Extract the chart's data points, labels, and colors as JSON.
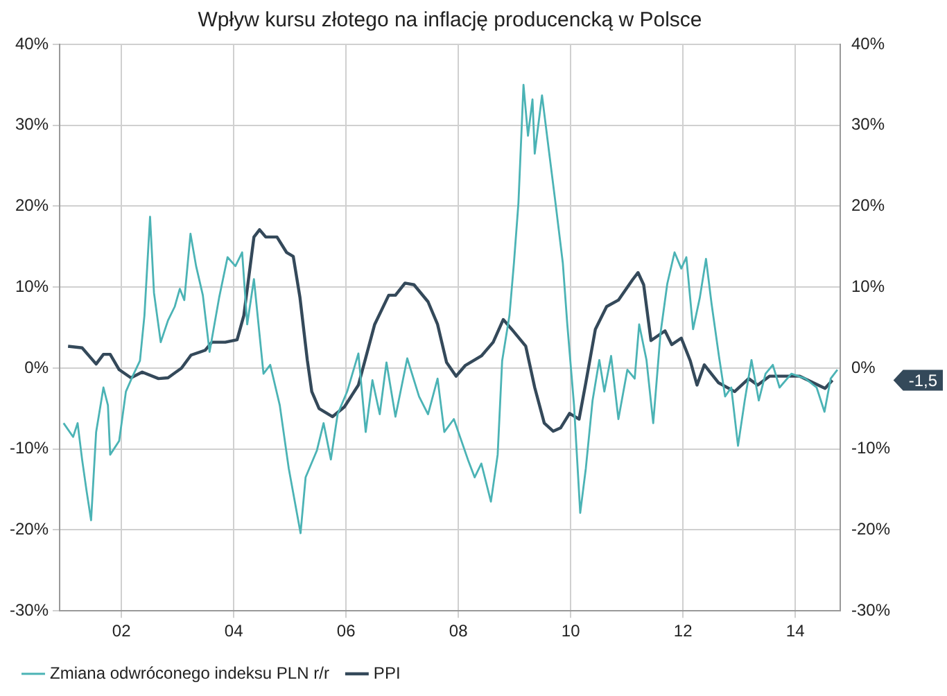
{
  "chart_data": {
    "type": "line",
    "title": "Wpływ kursu złotego na inflację producencką w Polsce",
    "xlim": [
      2000.9,
      2014.8
    ],
    "xticks": [
      {
        "value": 2002,
        "label": "02"
      },
      {
        "value": 2004,
        "label": "04"
      },
      {
        "value": 2006,
        "label": "06"
      },
      {
        "value": 2008,
        "label": "08"
      },
      {
        "value": 2010,
        "label": "10"
      },
      {
        "value": 2012,
        "label": "12"
      },
      {
        "value": 2014,
        "label": "14"
      }
    ],
    "ylim": [
      -30,
      40
    ],
    "yticks": [
      {
        "value": -30,
        "label": "-30%"
      },
      {
        "value": -20,
        "label": "-20%"
      },
      {
        "value": -10,
        "label": "-10%"
      },
      {
        "value": 0,
        "label": "0%"
      },
      {
        "value": 10,
        "label": "10%"
      },
      {
        "value": 20,
        "label": "20%"
      },
      {
        "value": 30,
        "label": "30%"
      },
      {
        "value": 40,
        "label": "40%"
      }
    ],
    "y2lim": [
      -30,
      40
    ],
    "y2ticks": [
      {
        "value": -30,
        "label": "-30%"
      },
      {
        "value": -20,
        "label": "-20%"
      },
      {
        "value": -10,
        "label": "-10%"
      },
      {
        "value": 0,
        "label": "0%"
      },
      {
        "value": 10,
        "label": "10%"
      },
      {
        "value": 20,
        "label": "20%"
      },
      {
        "value": 30,
        "label": "30%"
      },
      {
        "value": 40,
        "label": "40%"
      }
    ],
    "grid": true,
    "legend": "bottom",
    "marker": "none",
    "line_style": "solid",
    "annotations": [
      "-1,5"
    ],
    "series": [
      {
        "name": "Zmiana odwróconego indeksu PLN r/r",
        "color": "#4bb3b5",
        "x": [
          2000.97,
          2001.14,
          2001.22,
          2001.3,
          2001.38,
          2001.46,
          2001.55,
          2001.68,
          2001.76,
          2001.8,
          2001.96,
          2002.08,
          2002.2,
          2002.33,
          2002.41,
          2002.51,
          2002.58,
          2002.7,
          2002.83,
          2002.95,
          2003.04,
          2003.12,
          2003.23,
          2003.33,
          2003.45,
          2003.57,
          2003.74,
          2003.89,
          2004.03,
          2004.15,
          2004.24,
          2004.36,
          2004.53,
          2004.65,
          2004.82,
          2004.98,
          2005.19,
          2005.28,
          2005.48,
          2005.6,
          2005.73,
          2005.85,
          2006.02,
          2006.22,
          2006.35,
          2006.47,
          2006.6,
          2006.72,
          2006.88,
          2007.09,
          2007.3,
          2007.46,
          2007.63,
          2007.75,
          2007.92,
          2008.17,
          2008.29,
          2008.41,
          2008.58,
          2008.7,
          2008.78,
          2008.91,
          2008.99,
          2009.07,
          2009.16,
          2009.24,
          2009.32,
          2009.36,
          2009.49,
          2009.61,
          2009.73,
          2009.86,
          2009.94,
          2010.06,
          2010.17,
          2010.27,
          2010.39,
          2010.51,
          2010.6,
          2010.72,
          2010.85,
          2011.01,
          2011.14,
          2011.22,
          2011.35,
          2011.47,
          2011.6,
          2011.72,
          2011.85,
          2011.97,
          2012.06,
          2012.18,
          2012.3,
          2012.41,
          2012.51,
          2012.64,
          2012.75,
          2012.86,
          2012.98,
          2013.1,
          2013.22,
          2013.35,
          2013.47,
          2013.6,
          2013.72,
          2013.93,
          2014.18,
          2014.38,
          2014.52,
          2014.63,
          2014.75
        ],
        "values": [
          -6.8,
          -8.5,
          -6.8,
          -11.3,
          -15.2,
          -18.8,
          -7.9,
          -2.4,
          -4.6,
          -10.7,
          -9,
          -2.9,
          -1,
          0.9,
          6.5,
          18.7,
          9.3,
          3.2,
          5.9,
          7.6,
          9.8,
          8.4,
          16.6,
          12.6,
          9,
          2,
          8.7,
          13.7,
          12.6,
          14.3,
          5.4,
          11,
          -0.7,
          0.4,
          -4.6,
          -12.4,
          -20.4,
          -13.5,
          -10.2,
          -6.8,
          -11.3,
          -5.7,
          -2.9,
          1.8,
          -7.9,
          -1.5,
          -5.7,
          0.7,
          -6,
          1.2,
          -3.5,
          -5.7,
          -1.3,
          -7.9,
          -6.3,
          -11.3,
          -13.5,
          -11.8,
          -16.5,
          -10.7,
          0.9,
          6.5,
          13,
          20.4,
          35,
          28.7,
          33.2,
          26.5,
          33.7,
          27,
          20.4,
          13,
          5.4,
          -4.6,
          -17.9,
          -12.4,
          -4,
          1,
          -2.9,
          1.5,
          -6.3,
          -0.2,
          -1.3,
          5.4,
          1,
          -6.8,
          4.3,
          10.4,
          14.3,
          12.3,
          13.7,
          4.8,
          8.7,
          13.5,
          7.9,
          1.5,
          -3.5,
          -2.4,
          -9.6,
          -4,
          1,
          -4,
          -0.7,
          0.4,
          -2.4,
          -0.7,
          -1.3,
          -2.4,
          -5.4,
          -1.3,
          -0.2
        ]
      },
      {
        "name": "PPI",
        "color": "#34495a",
        "axis": "y2",
        "x": [
          2001.05,
          2001.3,
          2001.55,
          2001.68,
          2001.8,
          2001.96,
          2002.17,
          2002.37,
          2002.66,
          2002.83,
          2003.07,
          2003.24,
          2003.49,
          2003.61,
          2003.85,
          2004.06,
          2004.18,
          2004.36,
          2004.46,
          2004.57,
          2004.77,
          2004.94,
          2005.06,
          2005.18,
          2005.31,
          2005.39,
          2005.52,
          2005.76,
          2005.97,
          2006.22,
          2006.51,
          2006.76,
          2006.88,
          2007.05,
          2007.21,
          2007.46,
          2007.63,
          2007.79,
          2007.96,
          2008.12,
          2008.41,
          2008.62,
          2008.8,
          2008.95,
          2009.2,
          2009.36,
          2009.53,
          2009.69,
          2009.82,
          2009.98,
          2010.15,
          2010.27,
          2010.44,
          2010.64,
          2010.85,
          2011.1,
          2011.2,
          2011.3,
          2011.43,
          2011.68,
          2011.8,
          2011.97,
          2012.13,
          2012.25,
          2012.38,
          2012.63,
          2012.92,
          2013.17,
          2013.33,
          2013.54,
          2014.08,
          2014.53,
          2014.66
        ],
        "values": [
          2.7,
          2.5,
          0.5,
          1.7,
          1.7,
          -0.2,
          -1.2,
          -0.5,
          -1.3,
          -1.2,
          0,
          1.6,
          2.2,
          3.2,
          3.2,
          3.5,
          6.5,
          16.2,
          17.1,
          16.2,
          16.2,
          14.3,
          13.8,
          8.7,
          1,
          -2.9,
          -5,
          -6,
          -4.8,
          -2.1,
          5.4,
          9,
          9,
          10.5,
          10.3,
          8.2,
          5.4,
          0.7,
          -1,
          0.3,
          1.5,
          3.2,
          6,
          4.8,
          2.7,
          -2.4,
          -6.8,
          -7.8,
          -7.4,
          -5.6,
          -6.3,
          -1.8,
          4.8,
          7.6,
          8.4,
          10.9,
          11.8,
          10.3,
          3.4,
          4.6,
          2.9,
          3.7,
          0.9,
          -2.1,
          0.4,
          -1.8,
          -2.9,
          -1.3,
          -2.1,
          -1,
          -1,
          -2.5,
          -1.5
        ]
      }
    ]
  }
}
